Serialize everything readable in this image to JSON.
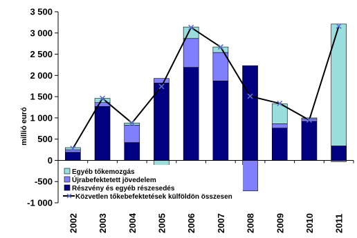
{
  "chart_data": {
    "type": "bar",
    "title": "",
    "ylabel": "millió euró",
    "xlabel": "",
    "ylim": [
      -1000,
      3500
    ],
    "yticks": [
      -1000,
      -500,
      0,
      500,
      1000,
      1500,
      2000,
      2500,
      3000,
      3500
    ],
    "ytick_labels": [
      "-1 000",
      "-500",
      "0",
      "500",
      "1 000",
      "1 500",
      "2 000",
      "2 500",
      "3 000",
      "3 500"
    ],
    "categories": [
      "2002",
      "2003",
      "2004",
      "2005",
      "2006",
      "2007",
      "2008",
      "2009",
      "2010",
      "2011"
    ],
    "stacked": true,
    "grid": false,
    "legend_position": "bottom-left",
    "series": [
      {
        "name": "Részvény és egyéb részesedés",
        "kind": "bar",
        "color": "#000080",
        "values": [
          190,
          1270,
          420,
          1820,
          2190,
          1870,
          2230,
          760,
          920,
          340
        ]
      },
      {
        "name": "Újrabefektetett jövedelem",
        "kind": "bar",
        "color": "#8080ff",
        "values": [
          60,
          90,
          410,
          110,
          680,
          670,
          -720,
          100,
          60,
          -30
        ]
      },
      {
        "name": "Egyéb tőkemozgás",
        "kind": "bar",
        "color": "#99dddd",
        "values": [
          50,
          100,
          50,
          -190,
          270,
          130,
          0,
          470,
          20,
          2870
        ]
      },
      {
        "name": "Közvetlen tőkebefektetések külföldön összesen",
        "kind": "line",
        "color": "#000000",
        "marker": "x",
        "values": [
          280,
          1460,
          880,
          1740,
          3130,
          2670,
          1510,
          1340,
          950,
          3160
        ]
      }
    ],
    "legend_order": [
      2,
      1,
      0,
      3
    ]
  }
}
